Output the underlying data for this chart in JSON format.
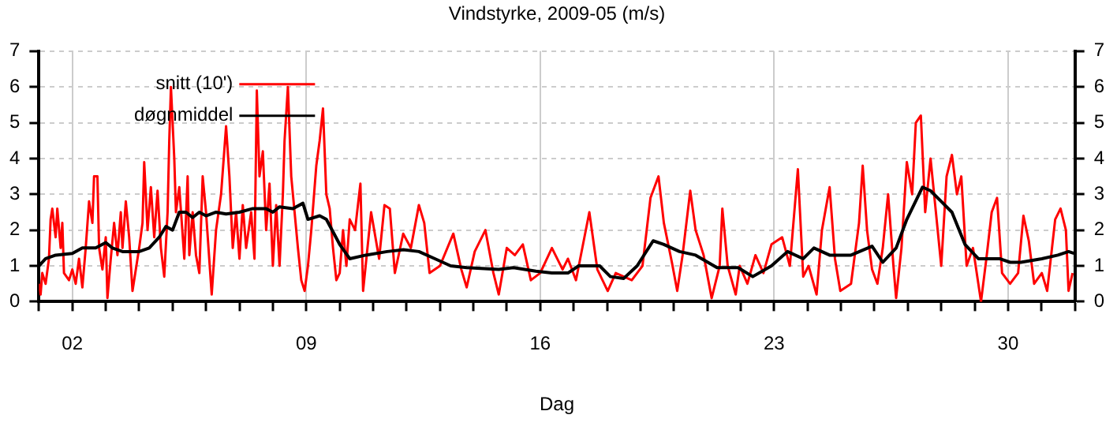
{
  "chart_data": {
    "type": "line",
    "title": "Vindstyrke, 2009-05 (m/s)",
    "xlabel": "Dag",
    "legend": "top left",
    "grid": true,
    "xlim": [
      1,
      32
    ],
    "xticks": [
      {
        "value": 1,
        "label": null
      },
      {
        "value": 2,
        "label": "02"
      },
      {
        "value": 3,
        "label": null
      },
      {
        "value": 4,
        "label": null
      },
      {
        "value": 5,
        "label": null
      },
      {
        "value": 6,
        "label": null
      },
      {
        "value": 7,
        "label": null
      },
      {
        "value": 8,
        "label": null
      },
      {
        "value": 9,
        "label": "09"
      },
      {
        "value": 10,
        "label": null
      },
      {
        "value": 11,
        "label": null
      },
      {
        "value": 12,
        "label": null
      },
      {
        "value": 13,
        "label": null
      },
      {
        "value": 14,
        "label": null
      },
      {
        "value": 15,
        "label": null
      },
      {
        "value": 16,
        "label": "16"
      },
      {
        "value": 17,
        "label": null
      },
      {
        "value": 18,
        "label": null
      },
      {
        "value": 19,
        "label": null
      },
      {
        "value": 20,
        "label": null
      },
      {
        "value": 21,
        "label": null
      },
      {
        "value": 22,
        "label": null
      },
      {
        "value": 23,
        "label": "23"
      },
      {
        "value": 24,
        "label": null
      },
      {
        "value": 25,
        "label": null
      },
      {
        "value": 26,
        "label": null
      },
      {
        "value": 27,
        "label": null
      },
      {
        "value": 28,
        "label": null
      },
      {
        "value": 29,
        "label": null
      },
      {
        "value": 30,
        "label": "30"
      },
      {
        "value": 31,
        "label": null
      },
      {
        "value": 32,
        "label": null
      }
    ],
    "ylim": [
      0,
      7
    ],
    "yticks": [
      0,
      1,
      2,
      3,
      4,
      5,
      6,
      7
    ],
    "y2lim": [
      0,
      7
    ],
    "y2ticks": [
      0,
      1,
      2,
      3,
      4,
      5,
      6,
      7
    ],
    "series": [
      {
        "name": "snitt (10')",
        "color": "#ff0000",
        "x": [
          1.0,
          1.05,
          1.1,
          1.2,
          1.3,
          1.35,
          1.4,
          1.5,
          1.55,
          1.65,
          1.7,
          1.75,
          1.9,
          2.0,
          2.1,
          2.2,
          2.3,
          2.4,
          2.5,
          2.6,
          2.65,
          2.75,
          2.8,
          2.9,
          3.0,
          3.05,
          3.15,
          3.25,
          3.35,
          3.45,
          3.5,
          3.6,
          3.7,
          3.8,
          3.9,
          4.0,
          4.1,
          4.15,
          4.25,
          4.35,
          4.45,
          4.55,
          4.65,
          4.75,
          4.85,
          4.9,
          4.95,
          5.05,
          5.1,
          5.2,
          5.35,
          5.45,
          5.5,
          5.6,
          5.7,
          5.8,
          5.9,
          6.0,
          6.17,
          6.3,
          6.45,
          6.6,
          6.7,
          6.8,
          6.9,
          7.0,
          7.1,
          7.2,
          7.35,
          7.45,
          7.52,
          7.6,
          7.7,
          7.8,
          7.9,
          8.0,
          8.1,
          8.2,
          8.3,
          8.35,
          8.45,
          8.55,
          8.65,
          8.75,
          8.85,
          8.95,
          9.05,
          9.15,
          9.3,
          9.4,
          9.5,
          9.6,
          9.7,
          9.8,
          9.9,
          10.0,
          10.1,
          10.2,
          10.3,
          10.46,
          10.62,
          10.7,
          10.94,
          11.18,
          11.34,
          11.5,
          11.65,
          11.9,
          12.13,
          12.37,
          12.53,
          12.69,
          13.0,
          13.4,
          13.64,
          13.8,
          14.04,
          14.36,
          14.6,
          14.76,
          15.0,
          15.24,
          15.48,
          15.72,
          16.0,
          16.35,
          16.67,
          16.83,
          17.07,
          17.47,
          17.71,
          18.02,
          18.26,
          18.74,
          19.06,
          19.3,
          19.54,
          19.7,
          19.94,
          20.1,
          20.26,
          20.49,
          20.65,
          20.89,
          21.13,
          21.37,
          21.45,
          21.61,
          21.85,
          21.97,
          22.2,
          22.44,
          22.68,
          22.92,
          23.24,
          23.47,
          23.71,
          23.87,
          24.03,
          24.27,
          24.43,
          24.66,
          24.82,
          24.98,
          25.3,
          25.54,
          25.65,
          25.78,
          25.93,
          26.09,
          26.25,
          26.41,
          26.57,
          26.65,
          26.81,
          26.97,
          27.13,
          27.24,
          27.39,
          27.52,
          27.68,
          27.84,
          28.0,
          28.16,
          28.32,
          28.47,
          28.6,
          28.76,
          28.95,
          29.19,
          29.35,
          29.51,
          29.67,
          29.82,
          30.06,
          30.3,
          30.46,
          30.62,
          30.78,
          31.01,
          31.17,
          31.41,
          31.57,
          31.73,
          31.81,
          31.93
        ],
        "values": [
          0.5,
          0.2,
          0.8,
          0.5,
          1.2,
          2.3,
          2.6,
          1.8,
          2.6,
          1.5,
          2.2,
          0.8,
          0.6,
          0.9,
          0.5,
          1.2,
          0.4,
          1.5,
          2.8,
          2.2,
          3.5,
          3.5,
          1.5,
          0.9,
          1.8,
          0.1,
          1.2,
          2.2,
          1.3,
          2.5,
          1.5,
          2.8,
          1.8,
          0.3,
          0.9,
          1.5,
          2.2,
          3.9,
          2.0,
          3.2,
          1.8,
          3.1,
          1.5,
          0.7,
          2.5,
          4.5,
          6.0,
          4.0,
          2.5,
          3.2,
          1.2,
          3.5,
          1.3,
          2.5,
          1.3,
          0.8,
          3.5,
          2.5,
          0.2,
          2.0,
          3.0,
          4.9,
          3.5,
          1.5,
          2.5,
          1.2,
          2.7,
          1.5,
          2.5,
          1.2,
          5.9,
          3.5,
          4.2,
          2.0,
          3.3,
          1.0,
          2.7,
          1.0,
          3.0,
          4.5,
          6.0,
          3.5,
          2.5,
          1.5,
          0.6,
          0.3,
          1.0,
          2.0,
          3.8,
          4.5,
          5.4,
          3.0,
          2.6,
          1.5,
          0.6,
          0.8,
          2.0,
          1.0,
          2.3,
          2.0,
          3.3,
          0.3,
          2.5,
          1.2,
          2.7,
          2.6,
          0.8,
          1.9,
          1.5,
          2.7,
          2.2,
          0.8,
          1.0,
          1.9,
          0.9,
          0.4,
          1.4,
          2.0,
          0.8,
          0.2,
          1.5,
          1.3,
          1.6,
          0.6,
          0.8,
          1.5,
          0.9,
          1.2,
          0.6,
          2.5,
          0.9,
          0.3,
          0.8,
          0.6,
          1.0,
          2.9,
          3.5,
          2.2,
          1.1,
          0.3,
          1.3,
          3.1,
          2.0,
          1.3,
          0.1,
          1.0,
          2.6,
          1.0,
          0.2,
          1.0,
          0.5,
          1.3,
          0.8,
          1.6,
          1.8,
          1.0,
          3.7,
          0.7,
          1.0,
          0.2,
          2.0,
          3.2,
          1.2,
          0.3,
          0.5,
          2.2,
          3.8,
          2.0,
          0.9,
          0.5,
          1.5,
          3.0,
          1.0,
          0.1,
          1.5,
          3.9,
          3.0,
          5.0,
          5.2,
          2.5,
          4.0,
          2.5,
          1.0,
          3.5,
          4.1,
          3.0,
          3.5,
          1.0,
          1.5,
          0.0,
          1.2,
          2.5,
          2.9,
          0.8,
          0.5,
          0.8,
          2.4,
          1.7,
          0.5,
          0.8,
          0.3,
          2.3,
          2.6,
          2.0,
          0.3,
          0.8
        ]
      },
      {
        "name": "døgnmiddel",
        "color": "#000000",
        "x": [
          1.0,
          1.2,
          1.5,
          2.0,
          2.3,
          2.7,
          3.0,
          3.2,
          3.5,
          4.0,
          4.3,
          4.6,
          4.8,
          5.0,
          5.2,
          5.4,
          5.6,
          5.8,
          6.0,
          6.3,
          6.6,
          7.0,
          7.4,
          7.8,
          8.0,
          8.2,
          8.6,
          8.9,
          9.05,
          9.4,
          9.6,
          10.0,
          10.3,
          10.78,
          11.42,
          11.9,
          12.37,
          12.85,
          13.32,
          13.8,
          14.76,
          15.2,
          15.87,
          16.35,
          16.83,
          17.15,
          17.78,
          18.1,
          18.5,
          18.9,
          19.38,
          19.7,
          20.17,
          20.65,
          21.29,
          21.92,
          22.36,
          22.92,
          23.4,
          23.87,
          24.19,
          24.66,
          25.3,
          25.93,
          26.25,
          26.65,
          26.97,
          27.44,
          27.68,
          28.0,
          28.32,
          28.71,
          29.11,
          29.75,
          30.06,
          30.38,
          31.01,
          31.49,
          31.81,
          31.97
        ],
        "values": [
          1.0,
          1.2,
          1.3,
          1.35,
          1.5,
          1.5,
          1.65,
          1.5,
          1.4,
          1.4,
          1.5,
          1.8,
          2.1,
          2.0,
          2.5,
          2.5,
          2.35,
          2.5,
          2.4,
          2.5,
          2.45,
          2.5,
          2.6,
          2.6,
          2.5,
          2.65,
          2.6,
          2.75,
          2.3,
          2.4,
          2.3,
          1.6,
          1.2,
          1.3,
          1.4,
          1.45,
          1.4,
          1.2,
          1.0,
          0.95,
          0.9,
          0.95,
          0.85,
          0.8,
          0.8,
          1.0,
          1.0,
          0.7,
          0.65,
          1.0,
          1.7,
          1.6,
          1.4,
          1.3,
          0.95,
          0.95,
          0.7,
          1.0,
          1.4,
          1.2,
          1.5,
          1.3,
          1.3,
          1.55,
          1.1,
          1.5,
          2.3,
          3.2,
          3.1,
          2.8,
          2.5,
          1.6,
          1.2,
          1.2,
          1.1,
          1.1,
          1.2,
          1.3,
          1.4,
          1.35
        ]
      }
    ]
  }
}
